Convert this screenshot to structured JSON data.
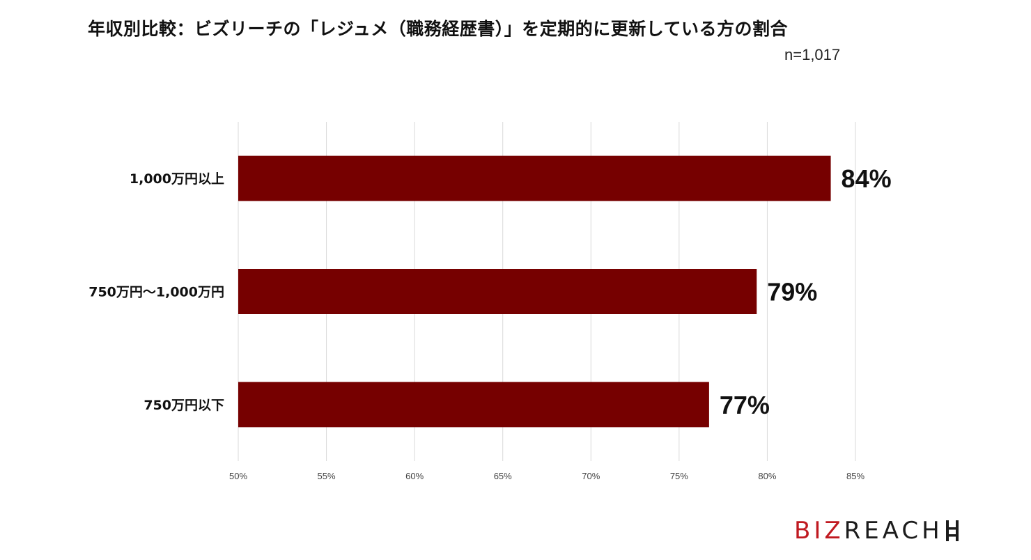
{
  "title": "年収別比較：ビズリーチの「レジュメ（職務経歴書）」を定期的に更新している方の割合",
  "sample_size": "n=1,017",
  "logo": {
    "part1": "BIZ",
    "part2": "REACH"
  },
  "colors": {
    "bar": "#760000",
    "grid": "#d9d9d9",
    "logo_red": "#c01920",
    "logo_dark": "#1c1c1c"
  },
  "chart_data": {
    "type": "bar",
    "orientation": "horizontal",
    "categories": [
      "1,000万円以上",
      "750万円～1,000万円",
      "750万円以下"
    ],
    "values": [
      84,
      79,
      77
    ],
    "display_values": [
      83.6,
      79.4,
      76.7
    ],
    "data_labels": [
      "84%",
      "79%",
      "77%"
    ],
    "xlim": [
      50,
      85
    ],
    "xticks": [
      50,
      55,
      60,
      65,
      70,
      75,
      80,
      85
    ],
    "xtick_labels": [
      "50%",
      "55%",
      "60%",
      "65%",
      "70%",
      "75%",
      "80%",
      "85%"
    ],
    "grid": true,
    "legend": "none"
  }
}
